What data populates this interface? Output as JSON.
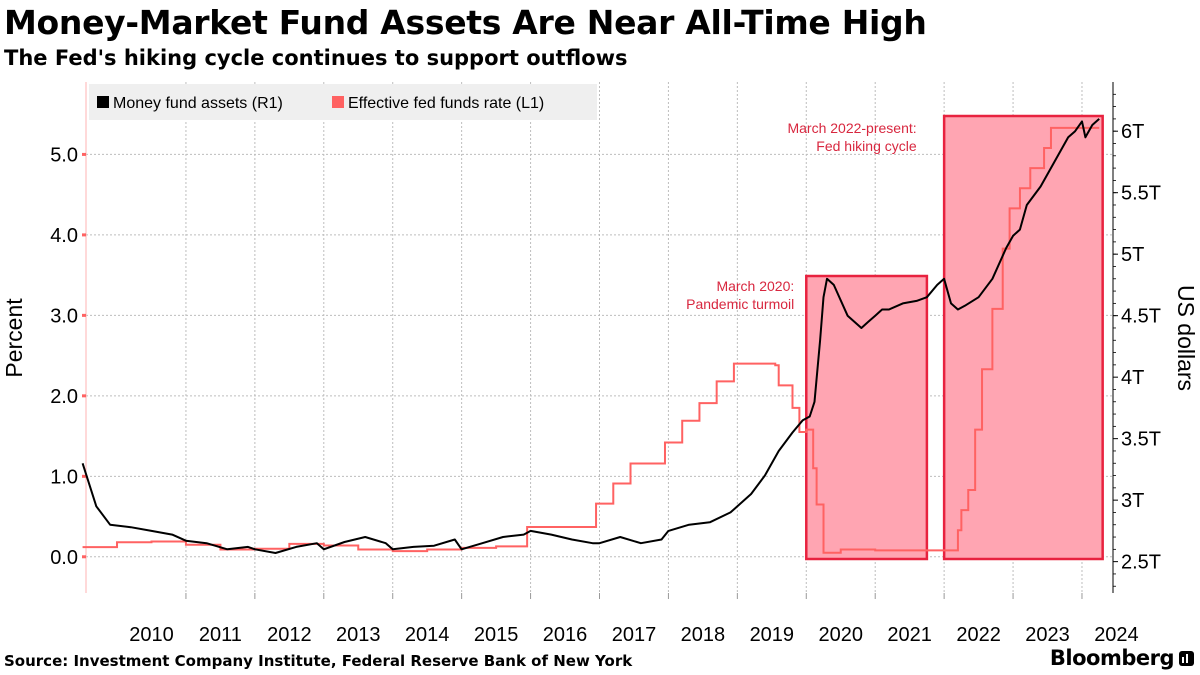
{
  "header": {
    "title": "Money-Market Fund Assets Are Near All-Time High",
    "subtitle": "The Fed's hiking cycle continues to support outflows"
  },
  "footer": {
    "source": "Source: Investment Company Institute, Federal Reserve Bank of New York",
    "brand": "Bloomberg"
  },
  "colors": {
    "assets_line": "#000000",
    "rate_line": "#ff6262",
    "highlight_fill": "#ffa5b2",
    "highlight_border": "#e8223f",
    "annotation_text": "#d8273f",
    "grid": "#bdbdbd",
    "legend_bg": "#efefef"
  },
  "chart_data": {
    "type": "line",
    "xlabel": "",
    "x_range": [
      2009.55,
      2024.45
    ],
    "x_ticks": [
      2010,
      2011,
      2012,
      2013,
      2014,
      2015,
      2016,
      2017,
      2018,
      2019,
      2020,
      2021,
      2022,
      2023,
      2024
    ],
    "left_axis": {
      "label": "Percent",
      "range": [
        -0.45,
        5.9
      ],
      "ticks": [
        0.0,
        1.0,
        2.0,
        3.0,
        4.0,
        5.0
      ],
      "tick_labels": [
        "0.0",
        "1.0",
        "2.0",
        "3.0",
        "4.0",
        "5.0"
      ]
    },
    "right_axis": {
      "label": "US dollars",
      "range": [
        2.245,
        6.4
      ],
      "ticks": [
        2.5,
        3.0,
        3.5,
        4.0,
        4.5,
        5.0,
        5.5,
        6.0
      ],
      "tick_labels": [
        "2.5T",
        "3T",
        "3.5T",
        "4T",
        "4.5T",
        "5T",
        "5.5T",
        "6T"
      ]
    },
    "grid": true,
    "legend": {
      "position": "top-left",
      "entries": [
        {
          "label": "Money fund assets (R1)",
          "series": "assets"
        },
        {
          "label": "Effective fed funds rate  (L1)",
          "series": "rate"
        }
      ]
    },
    "series": [
      {
        "id": "assets",
        "name": "Money fund assets",
        "axis": "right",
        "unit": "trillion USD",
        "x": [
          2009.5,
          2009.7,
          2009.9,
          2010.2,
          2010.5,
          2010.8,
          2011.0,
          2011.3,
          2011.6,
          2011.9,
          2012.0,
          2012.3,
          2012.6,
          2012.9,
          2013.0,
          2013.3,
          2013.6,
          2013.9,
          2014.0,
          2014.3,
          2014.6,
          2014.9,
          2015.0,
          2015.3,
          2015.6,
          2015.9,
          2016.0,
          2016.3,
          2016.6,
          2016.9,
          2017.0,
          2017.3,
          2017.6,
          2017.9,
          2018.0,
          2018.3,
          2018.6,
          2018.9,
          2019.0,
          2019.2,
          2019.4,
          2019.6,
          2019.8,
          2019.95,
          2020.05,
          2020.12,
          2020.2,
          2020.25,
          2020.3,
          2020.4,
          2020.6,
          2020.8,
          2020.9,
          2021.0,
          2021.1,
          2021.2,
          2021.4,
          2021.6,
          2021.75,
          2021.9,
          2022.0,
          2022.1,
          2022.2,
          2022.3,
          2022.5,
          2022.7,
          2022.9,
          2023.0,
          2023.1,
          2023.2,
          2023.4,
          2023.6,
          2023.8,
          2023.9,
          2024.0,
          2024.05,
          2024.15,
          2024.25
        ],
        "y": [
          3.3,
          2.95,
          2.8,
          2.78,
          2.75,
          2.72,
          2.67,
          2.65,
          2.6,
          2.62,
          2.6,
          2.57,
          2.62,
          2.65,
          2.6,
          2.66,
          2.7,
          2.65,
          2.6,
          2.62,
          2.63,
          2.68,
          2.6,
          2.65,
          2.7,
          2.72,
          2.75,
          2.72,
          2.68,
          2.65,
          2.65,
          2.7,
          2.65,
          2.68,
          2.75,
          2.8,
          2.82,
          2.9,
          2.95,
          3.05,
          3.2,
          3.4,
          3.55,
          3.65,
          3.68,
          3.8,
          4.3,
          4.65,
          4.8,
          4.75,
          4.5,
          4.4,
          4.45,
          4.5,
          4.55,
          4.55,
          4.6,
          4.62,
          4.65,
          4.75,
          4.8,
          4.6,
          4.55,
          4.58,
          4.65,
          4.8,
          5.05,
          5.15,
          5.2,
          5.4,
          5.55,
          5.75,
          5.95,
          6.0,
          6.08,
          5.95,
          6.05,
          6.1
        ]
      },
      {
        "id": "rate",
        "name": "Effective fed funds rate",
        "axis": "left",
        "unit": "percent",
        "step": true,
        "x": [
          2009.5,
          2010.0,
          2010.5,
          2011.0,
          2011.5,
          2012.0,
          2012.5,
          2013.0,
          2013.5,
          2014.0,
          2014.5,
          2015.0,
          2015.5,
          2015.95,
          2016.95,
          2017.2,
          2017.45,
          2017.95,
          2018.2,
          2018.45,
          2018.7,
          2018.95,
          2019.55,
          2019.6,
          2019.8,
          2019.9,
          2020.0,
          2020.1,
          2020.15,
          2020.25,
          2020.5,
          2021.0,
          2021.5,
          2022.0,
          2022.2,
          2022.25,
          2022.35,
          2022.45,
          2022.55,
          2022.7,
          2022.85,
          2022.95,
          2023.1,
          2023.25,
          2023.45,
          2023.55,
          2024.25
        ],
        "y": [
          0.12,
          0.18,
          0.19,
          0.15,
          0.09,
          0.1,
          0.16,
          0.14,
          0.09,
          0.07,
          0.09,
          0.11,
          0.13,
          0.37,
          0.66,
          0.91,
          1.16,
          1.42,
          1.69,
          1.91,
          2.18,
          2.4,
          2.38,
          2.13,
          1.85,
          1.55,
          1.58,
          1.1,
          0.65,
          0.05,
          0.09,
          0.08,
          0.08,
          0.08,
          0.33,
          0.58,
          0.83,
          1.58,
          2.33,
          3.08,
          3.83,
          4.33,
          4.58,
          4.83,
          5.08,
          5.33,
          5.33
        ]
      }
    ],
    "highlights": [
      {
        "x_start": 2020.0,
        "x_end": 2021.75,
        "label_lines": [
          "March 2020:",
          "Pandemic turmoil"
        ]
      },
      {
        "x_start": 2022.0,
        "x_end": 2024.3,
        "label_lines": [
          "March 2022-present:",
          "Fed hiking cycle"
        ]
      }
    ]
  }
}
